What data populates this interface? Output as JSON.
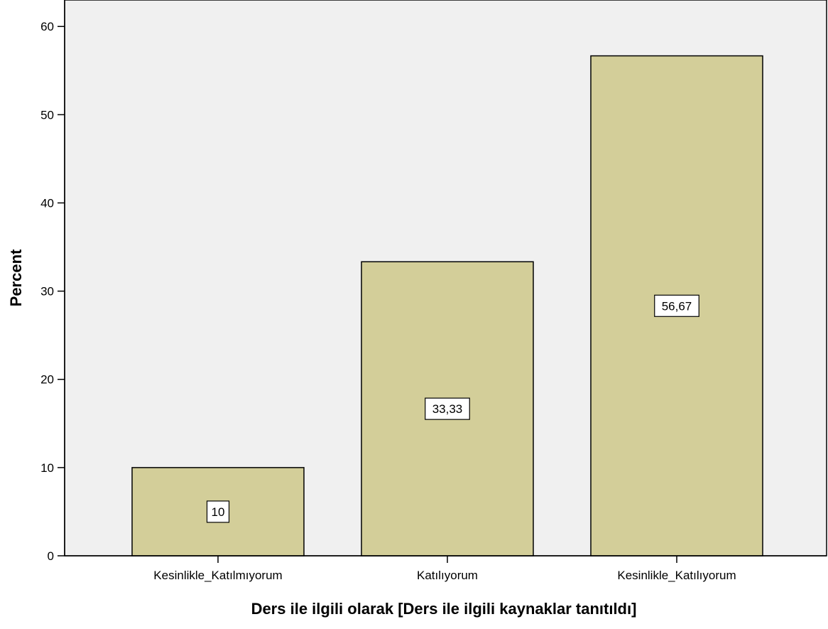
{
  "chart_data": {
    "type": "bar",
    "categories": [
      "Kesinlikle_Katılmıyorum",
      "Katılıyorum",
      "Kesinlikle_Katılıyorum"
    ],
    "values": [
      10,
      33.33,
      56.67
    ],
    "data_labels": [
      "10",
      "33,33",
      "56,67"
    ],
    "xlabel": "Ders ile ilgili olarak [Ders ile ilgili kaynaklar tanıtıldı]",
    "ylabel": "Percent",
    "ylim": [
      0,
      63
    ],
    "yticks": [
      0,
      10,
      20,
      30,
      40,
      50,
      60
    ],
    "ytick_labels": [
      "0",
      "10",
      "20",
      "30",
      "40",
      "50",
      "60"
    ],
    "grid": false,
    "legend": "none",
    "colors": {
      "bar_fill": "#d3ce99",
      "bar_stroke": "#000000",
      "plot_background": "#f0f0f0",
      "label_box_fill": "#ffffff"
    }
  }
}
